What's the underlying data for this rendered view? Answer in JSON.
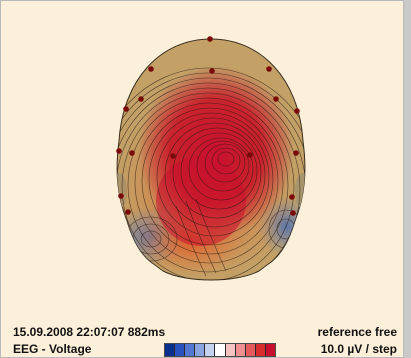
{
  "view": {
    "timestamp": "15.09.2008 22:07:07 882ms",
    "mode": "EEG - Voltage",
    "reference": "reference free",
    "step": "10.0 µV / step"
  },
  "colors": {
    "background": "#fdf0da",
    "head_base": "#c2a066",
    "positive_peak": "#c8102e",
    "negative": "#4e6fb0",
    "electrode": "#7a0a0a"
  },
  "color_scale": [
    "#0b2f8c",
    "#2a52bf",
    "#5378d1",
    "#8aa4e0",
    "#c4d2f0",
    "#ffffff",
    "#f6c3c3",
    "#ef8f8f",
    "#e55a5a",
    "#d92d2d",
    "#c8102e"
  ]
}
